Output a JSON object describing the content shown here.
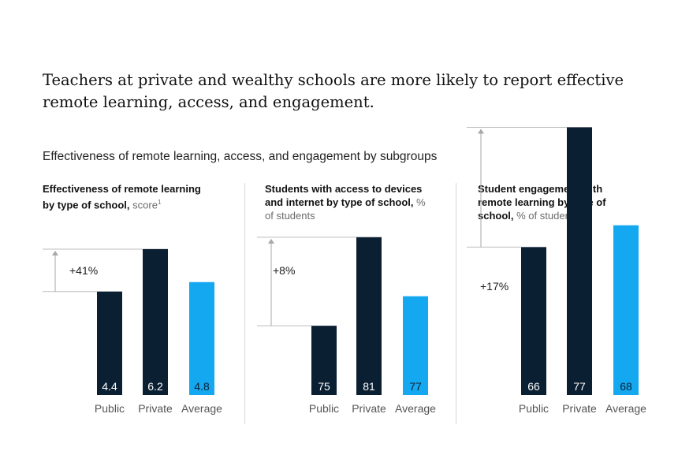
{
  "title": "Teachers at private and wealthy schools are more likely to report effective remote learning, access, and engagement.",
  "subtitle": "Effectiveness of remote learning, access, and engagement by subgroups",
  "colors": {
    "dark": "#0b1f33",
    "accent": "#14a8f0",
    "arrow": "#a7a7a7",
    "muted": "#555555"
  },
  "chart_data": [
    {
      "type": "bar",
      "title_bold": "Effectiveness of remote learning by type of school,",
      "title_unit": "score",
      "footnote": "1",
      "categories": [
        "Public",
        "Private",
        "Average"
      ],
      "values": [
        4.4,
        6.2,
        4.8
      ],
      "value_labels": [
        "4.4",
        "6.2",
        "4.8"
      ],
      "bar_colors": [
        "#0b1f33",
        "#0b1f33",
        "#14a8f0"
      ],
      "annotation": "+41%"
    },
    {
      "type": "bar",
      "title_bold": "Students with access to devices and internet by type of school,",
      "title_unit": "% of students",
      "footnote": "",
      "categories": [
        "Public",
        "Private",
        "Average"
      ],
      "values": [
        75,
        81,
        77
      ],
      "value_labels": [
        "75",
        "81",
        "77"
      ],
      "bar_colors": [
        "#0b1f33",
        "#0b1f33",
        "#14a8f0"
      ],
      "annotation": "+8%"
    },
    {
      "type": "bar",
      "title_bold": "Student engagement with remote learning by type of school,",
      "title_unit": "% of students",
      "footnote": "",
      "categories": [
        "Public",
        "Private",
        "Average"
      ],
      "values": [
        66,
        77,
        68
      ],
      "value_labels": [
        "66",
        "77",
        "68"
      ],
      "bar_colors": [
        "#0b1f33",
        "#0b1f33",
        "#14a8f0"
      ],
      "annotation": "+17%"
    }
  ]
}
